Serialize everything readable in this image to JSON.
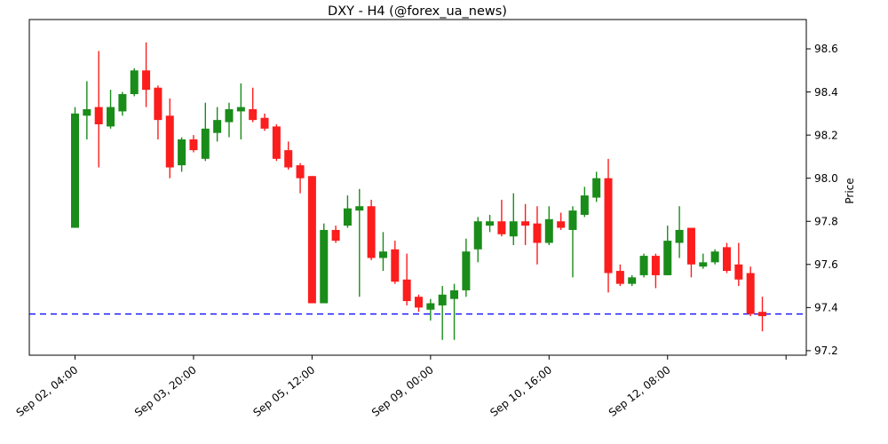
{
  "title": "DXY - H4 (@forex_ua_news)",
  "y_axis": {
    "label": "Price",
    "side": "right",
    "tick_values": [
      97.2,
      97.4,
      97.6,
      97.8,
      98.0,
      98.2,
      98.4,
      98.6
    ],
    "min": 97.179,
    "max": 98.736
  },
  "x_axis": {
    "tick_candle_indices": [
      0,
      10,
      20,
      30,
      40,
      50,
      60
    ],
    "tick_labels": [
      "Sep 02, 04:00",
      "Sep 03, 20:00",
      "Sep 05, 12:00",
      "Sep 09, 00:00",
      "Sep 10, 16:00",
      "Sep 12, 08:00",
      ""
    ]
  },
  "hline": {
    "price": 97.37,
    "color": "#0000ff",
    "style": "dashed"
  },
  "colors": {
    "up": "#1a8c1a",
    "down": "#fc1d1d",
    "axis": "#000000",
    "background": "#ffffff"
  },
  "chart_data": {
    "type": "candlestick",
    "symbol": "DXY",
    "timeframe": "H4",
    "source": "@forex_ua_news",
    "title": "DXY - H4 (@forex_ua_news)",
    "ylabel": "Price",
    "ylim": [
      97.179,
      98.736
    ],
    "grid": false,
    "legend": false,
    "ohlc_format": [
      "open",
      "high",
      "low",
      "close"
    ],
    "ohlc": [
      [
        97.77,
        98.33,
        97.77,
        98.3
      ],
      [
        98.29,
        98.45,
        98.18,
        98.32
      ],
      [
        98.33,
        98.59,
        98.05,
        98.25
      ],
      [
        98.24,
        98.41,
        98.23,
        98.33
      ],
      [
        98.31,
        98.4,
        98.29,
        98.39
      ],
      [
        98.39,
        98.51,
        98.38,
        98.5
      ],
      [
        98.5,
        98.63,
        98.33,
        98.41
      ],
      [
        98.42,
        98.43,
        98.18,
        98.27
      ],
      [
        98.29,
        98.37,
        98.0,
        98.05
      ],
      [
        98.06,
        98.19,
        98.03,
        98.18
      ],
      [
        98.18,
        98.2,
        98.12,
        98.13
      ],
      [
        98.09,
        98.35,
        98.08,
        98.23
      ],
      [
        98.21,
        98.33,
        98.17,
        98.27
      ],
      [
        98.26,
        98.35,
        98.19,
        98.32
      ],
      [
        98.31,
        98.44,
        98.18,
        98.33
      ],
      [
        98.32,
        98.42,
        98.26,
        98.27
      ],
      [
        98.28,
        98.3,
        98.22,
        98.23
      ],
      [
        98.24,
        98.25,
        98.08,
        98.09
      ],
      [
        98.13,
        98.17,
        98.04,
        98.05
      ],
      [
        98.06,
        98.07,
        97.93,
        98.0
      ],
      [
        98.01,
        98.01,
        97.42,
        97.42
      ],
      [
        97.42,
        97.79,
        97.42,
        97.76
      ],
      [
        97.76,
        97.78,
        97.7,
        97.71
      ],
      [
        97.78,
        97.92,
        97.77,
        97.86
      ],
      [
        97.85,
        97.95,
        97.45,
        97.87
      ],
      [
        97.87,
        97.9,
        97.62,
        97.63
      ],
      [
        97.63,
        97.75,
        97.57,
        97.66
      ],
      [
        97.67,
        97.71,
        97.51,
        97.52
      ],
      [
        97.53,
        97.65,
        97.41,
        97.43
      ],
      [
        97.45,
        97.46,
        97.38,
        97.4
      ],
      [
        97.39,
        97.44,
        97.34,
        97.42
      ],
      [
        97.41,
        97.5,
        97.25,
        97.46
      ],
      [
        97.44,
        97.51,
        97.25,
        97.48
      ],
      [
        97.48,
        97.72,
        97.45,
        97.66
      ],
      [
        97.67,
        97.82,
        97.61,
        97.8
      ],
      [
        97.78,
        97.83,
        97.75,
        97.8
      ],
      [
        97.8,
        97.9,
        97.73,
        97.74
      ],
      [
        97.73,
        97.93,
        97.69,
        97.8
      ],
      [
        97.8,
        97.88,
        97.69,
        97.78
      ],
      [
        97.79,
        97.87,
        97.6,
        97.7
      ],
      [
        97.7,
        97.87,
        97.69,
        97.81
      ],
      [
        97.8,
        97.84,
        97.76,
        97.77
      ],
      [
        97.76,
        97.87,
        97.54,
        97.85
      ],
      [
        97.83,
        97.96,
        97.82,
        97.92
      ],
      [
        97.91,
        98.03,
        97.89,
        98.0
      ],
      [
        98.0,
        98.09,
        97.47,
        97.56
      ],
      [
        97.57,
        97.6,
        97.5,
        97.51
      ],
      [
        97.51,
        97.55,
        97.5,
        97.54
      ],
      [
        97.55,
        97.65,
        97.54,
        97.64
      ],
      [
        97.64,
        97.65,
        97.49,
        97.55
      ],
      [
        97.55,
        97.78,
        97.55,
        97.71
      ],
      [
        97.7,
        97.87,
        97.63,
        97.76
      ],
      [
        97.77,
        97.77,
        97.54,
        97.6
      ],
      [
        97.59,
        97.65,
        97.58,
        97.61
      ],
      [
        97.61,
        97.67,
        97.6,
        97.66
      ],
      [
        97.68,
        97.7,
        97.56,
        97.57
      ],
      [
        97.6,
        97.7,
        97.5,
        97.53
      ],
      [
        97.56,
        97.59,
        97.36,
        97.37
      ],
      [
        97.38,
        97.45,
        97.29,
        97.36
      ]
    ],
    "hline_price": 97.37
  }
}
